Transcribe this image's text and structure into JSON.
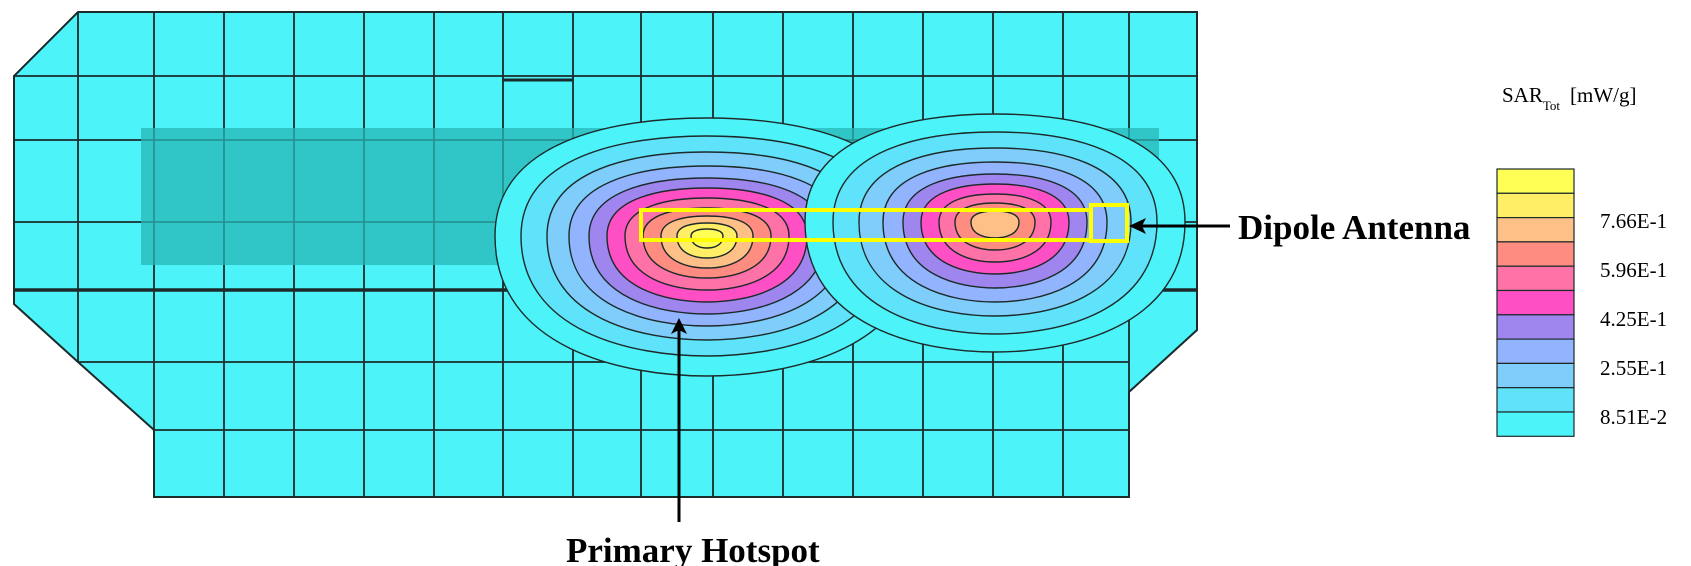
{
  "labels": {
    "antenna": "Dipole Antenna",
    "hotspot": "Primary Hotspot"
  },
  "legend": {
    "quantity": "SAR",
    "quantity_sub": "Tot",
    "unit": "[mW/g]",
    "ticks": [
      "7.66E-1",
      "5.96E-1",
      "4.25E-1",
      "2.55E-1",
      "8.51E-2"
    ],
    "colors": [
      "#ffff55",
      "#ffee66",
      "#ffc088",
      "#ff8c80",
      "#ff72a8",
      "#ff4fc4",
      "#9f85ee",
      "#92b4ff",
      "#7ecdfa",
      "#5ee3fb",
      "#4cf4fa"
    ]
  },
  "colors": {
    "mesh_fill": "#4cf4fa",
    "mesh_line": "#1c2a2a",
    "shadow_band": "#27b7b5",
    "antenna_outline": "#ffff00",
    "hotspot_core": "#ff4fc4",
    "hotspot_mid": "#9f85ee"
  },
  "icons": [
    "arrow-left-icon",
    "arrow-up-icon"
  ]
}
